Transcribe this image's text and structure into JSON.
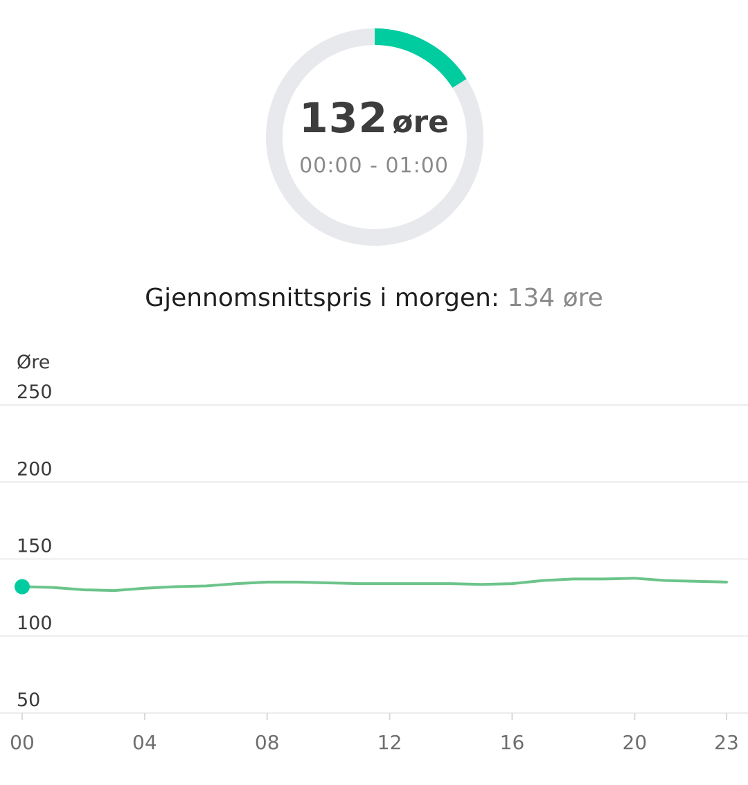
{
  "current_price": {
    "value": "132",
    "unit": "øre",
    "time_range": "00:00 - 01:00",
    "gauge_fraction": 0.16
  },
  "average": {
    "label": "Gjennomsnittspris i morgen:",
    "value": "134 øre"
  },
  "colors": {
    "accent": "#00cc9f",
    "line": "#6cc48a",
    "track": "#e8e9ec",
    "grid": "#ececec"
  },
  "chart_data": {
    "type": "line",
    "ylabel": "Øre",
    "ylim": [
      50,
      250
    ],
    "y_ticks": [
      250,
      200,
      150,
      100,
      50
    ],
    "x": [
      0,
      1,
      2,
      3,
      4,
      5,
      6,
      7,
      8,
      9,
      10,
      11,
      12,
      13,
      14,
      15,
      16,
      17,
      18,
      19,
      20,
      21,
      22,
      23
    ],
    "x_ticks": [
      "00",
      "04",
      "08",
      "12",
      "16",
      "20",
      "23"
    ],
    "x_tick_positions": [
      0,
      4,
      8,
      12,
      16,
      20,
      23
    ],
    "series": [
      {
        "values": [
          132,
          131.5,
          130,
          129.5,
          131,
          132,
          132.5,
          134,
          135,
          135,
          134.5,
          134,
          134,
          134,
          134,
          133.5,
          134,
          136,
          137,
          137,
          137.5,
          136,
          135.5,
          135
        ]
      }
    ],
    "highlight_index": 0,
    "grid": true
  }
}
